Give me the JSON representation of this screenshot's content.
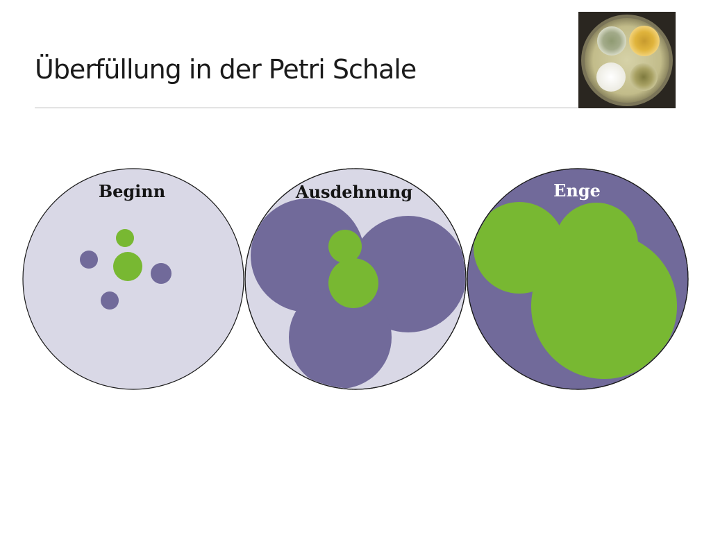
{
  "slide": {
    "title": "Überfüllung in der Petri Schale"
  },
  "dishes": [
    {
      "label": "Beginn"
    },
    {
      "label": "Ausdehnung"
    },
    {
      "label": "Enge"
    }
  ],
  "colors": {
    "dish_background": "#d9d8e6",
    "purple_colony": "#716a9a",
    "green_colony": "#78b832",
    "dish_outline": "#1a1a1a",
    "label_dark": "#141414",
    "label_light": "#ffffff"
  },
  "photo": {
    "subject": "petri-dish-photo"
  }
}
